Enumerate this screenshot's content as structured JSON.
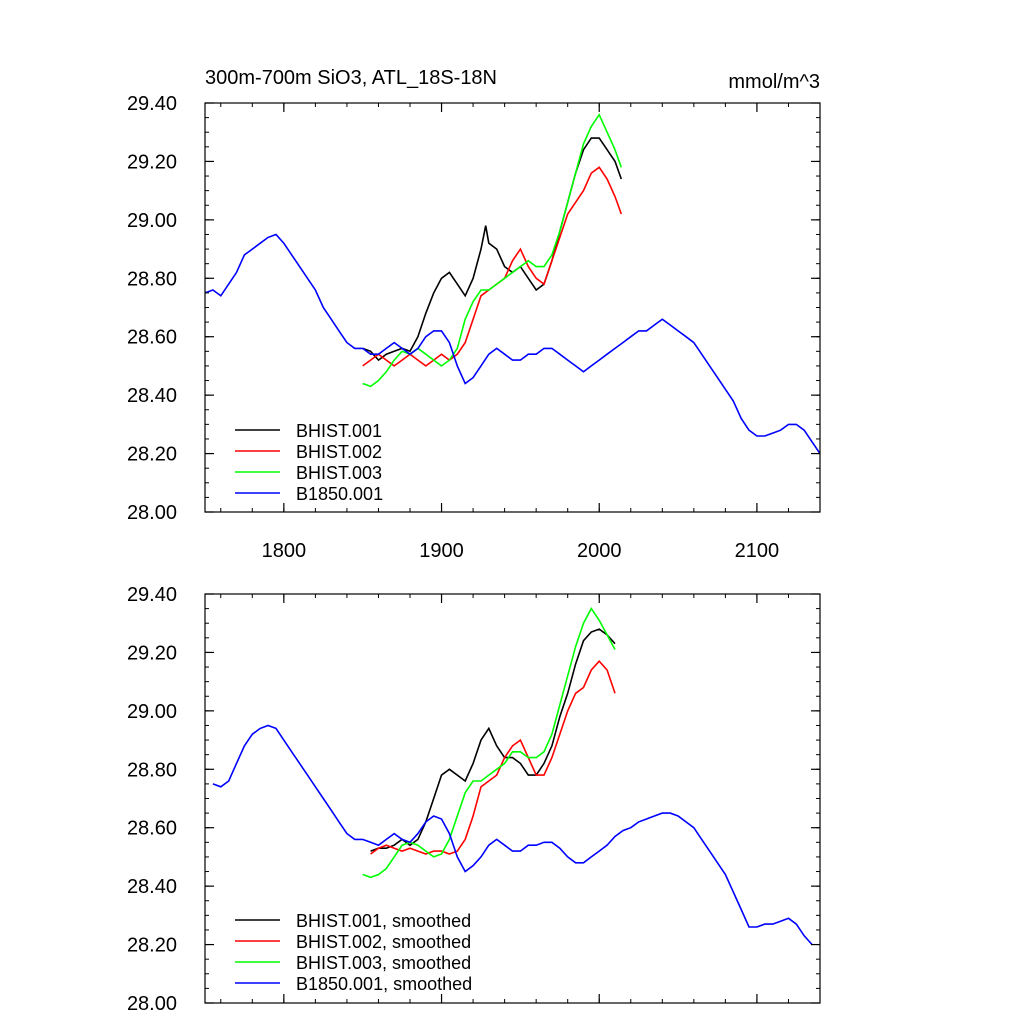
{
  "header": {
    "title": "300m-700m SiO3, ATL_18S-18N",
    "units": "mmol/m^3"
  },
  "colors": {
    "BHIST.001": "#000000",
    "BHIST.002": "#ff0000",
    "BHIST.003": "#00ff00",
    "B1850.001": "#0000ff"
  },
  "chart_data": [
    {
      "type": "line",
      "title": "300m-700m SiO3, ATL_18S-18N",
      "xlabel": "",
      "ylabel": "",
      "xlim": [
        1750,
        2140
      ],
      "ylim": [
        28.0,
        29.4
      ],
      "xticks": [
        1800,
        1900,
        2000,
        2100
      ],
      "xtick_labels": [
        "1800",
        "1900",
        "2000",
        "2100"
      ],
      "yticks": [
        28.0,
        28.2,
        28.4,
        28.6,
        28.8,
        29.0,
        29.2,
        29.4
      ],
      "ytick_labels": [
        "28.00",
        "28.20",
        "28.40",
        "28.60",
        "28.80",
        "29.00",
        "29.20",
        "29.40"
      ],
      "grid": false,
      "legend": "bottom-left",
      "series": [
        {
          "name": "BHIST.001",
          "color": "#000000",
          "x": [
            1850,
            1855,
            1860,
            1865,
            1870,
            1875,
            1880,
            1885,
            1890,
            1895,
            1900,
            1905,
            1910,
            1915,
            1920,
            1925,
            1928,
            1930,
            1935,
            1940,
            1945,
            1950,
            1955,
            1960,
            1965,
            1970,
            1975,
            1980,
            1985,
            1990,
            1995,
            2000,
            2005,
            2010,
            2014
          ],
          "y": [
            28.56,
            28.55,
            28.52,
            28.54,
            28.55,
            28.56,
            28.55,
            28.6,
            28.68,
            28.75,
            28.8,
            28.82,
            28.78,
            28.74,
            28.8,
            28.9,
            28.98,
            28.92,
            28.9,
            28.84,
            28.82,
            28.84,
            28.8,
            28.76,
            28.78,
            28.86,
            28.96,
            29.06,
            29.16,
            29.24,
            29.28,
            29.28,
            29.24,
            29.2,
            29.14
          ]
        },
        {
          "name": "BHIST.002",
          "color": "#ff0000",
          "x": [
            1850,
            1855,
            1860,
            1865,
            1870,
            1875,
            1880,
            1885,
            1890,
            1895,
            1900,
            1905,
            1910,
            1915,
            1920,
            1925,
            1930,
            1935,
            1940,
            1945,
            1950,
            1955,
            1960,
            1965,
            1970,
            1975,
            1980,
            1985,
            1990,
            1995,
            2000,
            2005,
            2010,
            2014
          ],
          "y": [
            28.5,
            28.52,
            28.54,
            28.52,
            28.5,
            28.52,
            28.54,
            28.52,
            28.5,
            28.52,
            28.54,
            28.52,
            28.54,
            28.58,
            28.66,
            28.74,
            28.76,
            28.78,
            28.8,
            28.86,
            28.9,
            28.84,
            28.8,
            28.78,
            28.86,
            28.94,
            29.02,
            29.06,
            29.1,
            29.16,
            29.18,
            29.14,
            29.08,
            29.02
          ]
        },
        {
          "name": "BHIST.003",
          "color": "#00ff00",
          "x": [
            1850,
            1855,
            1860,
            1865,
            1870,
            1875,
            1880,
            1885,
            1890,
            1895,
            1900,
            1905,
            1910,
            1915,
            1920,
            1925,
            1930,
            1935,
            1940,
            1945,
            1950,
            1955,
            1960,
            1965,
            1970,
            1975,
            1980,
            1985,
            1990,
            1995,
            2000,
            2005,
            2010,
            2014
          ],
          "y": [
            28.44,
            28.43,
            28.45,
            28.48,
            28.52,
            28.55,
            28.54,
            28.56,
            28.54,
            28.52,
            28.5,
            28.52,
            28.56,
            28.66,
            28.72,
            28.76,
            28.76,
            28.78,
            28.8,
            28.82,
            28.84,
            28.86,
            28.84,
            28.84,
            28.88,
            28.96,
            29.06,
            29.16,
            29.26,
            29.32,
            29.36,
            29.3,
            29.24,
            29.18
          ]
        },
        {
          "name": "B1850.001",
          "color": "#0000ff",
          "x": [
            1750,
            1755,
            1760,
            1765,
            1770,
            1775,
            1780,
            1785,
            1790,
            1795,
            1800,
            1805,
            1810,
            1815,
            1820,
            1825,
            1830,
            1835,
            1840,
            1845,
            1850,
            1855,
            1860,
            1865,
            1870,
            1875,
            1880,
            1885,
            1890,
            1895,
            1900,
            1905,
            1910,
            1915,
            1920,
            1925,
            1930,
            1935,
            1940,
            1945,
            1950,
            1955,
            1960,
            1965,
            1970,
            1975,
            1980,
            1985,
            1990,
            1995,
            2000,
            2005,
            2010,
            2015,
            2020,
            2025,
            2030,
            2035,
            2040,
            2045,
            2050,
            2055,
            2060,
            2065,
            2070,
            2075,
            2080,
            2085,
            2090,
            2095,
            2100,
            2105,
            2110,
            2115,
            2120,
            2125,
            2130,
            2135,
            2140
          ],
          "y": [
            28.75,
            28.76,
            28.74,
            28.78,
            28.82,
            28.88,
            28.9,
            28.92,
            28.94,
            28.95,
            28.92,
            28.88,
            28.84,
            28.8,
            28.76,
            28.7,
            28.66,
            28.62,
            28.58,
            28.56,
            28.56,
            28.54,
            28.54,
            28.56,
            28.58,
            28.56,
            28.54,
            28.56,
            28.6,
            28.62,
            28.62,
            28.58,
            28.5,
            28.44,
            28.46,
            28.5,
            28.54,
            28.56,
            28.54,
            28.52,
            28.52,
            28.54,
            28.54,
            28.56,
            28.56,
            28.54,
            28.52,
            28.5,
            28.48,
            28.5,
            28.52,
            28.54,
            28.56,
            28.58,
            28.6,
            28.62,
            28.62,
            28.64,
            28.66,
            28.64,
            28.62,
            28.6,
            28.58,
            28.54,
            28.5,
            28.46,
            28.42,
            28.38,
            28.32,
            28.28,
            28.26,
            28.26,
            28.27,
            28.28,
            28.3,
            28.3,
            28.28,
            28.24,
            28.2
          ]
        }
      ]
    },
    {
      "type": "line",
      "title": "",
      "xlabel": "",
      "ylabel": "",
      "xlim": [
        1750,
        2140
      ],
      "ylim": [
        28.0,
        29.4
      ],
      "xticks": [
        1800,
        1900,
        2000,
        2100
      ],
      "yticks": [
        28.0,
        28.2,
        28.4,
        28.6,
        28.8,
        29.0,
        29.2,
        29.4
      ],
      "ytick_labels": [
        "28.00",
        "28.20",
        "28.40",
        "28.60",
        "28.80",
        "29.00",
        "29.20",
        "29.40"
      ],
      "grid": false,
      "legend": "bottom-left",
      "series": [
        {
          "name": "BHIST.001, smoothed",
          "color": "#000000",
          "x": [
            1855,
            1860,
            1865,
            1870,
            1875,
            1880,
            1885,
            1890,
            1895,
            1900,
            1905,
            1910,
            1915,
            1920,
            1925,
            1930,
            1935,
            1940,
            1945,
            1950,
            1955,
            1960,
            1965,
            1970,
            1975,
            1980,
            1985,
            1990,
            1995,
            2000,
            2005,
            2010
          ],
          "y": [
            28.52,
            28.53,
            28.53,
            28.54,
            28.56,
            28.54,
            28.56,
            28.62,
            28.7,
            28.78,
            28.8,
            28.78,
            28.76,
            28.82,
            28.9,
            28.94,
            28.88,
            28.84,
            28.84,
            28.82,
            28.78,
            28.78,
            28.82,
            28.88,
            28.98,
            29.06,
            29.16,
            29.24,
            29.27,
            29.28,
            29.26,
            29.23
          ]
        },
        {
          "name": "BHIST.002, smoothed",
          "color": "#ff0000",
          "x": [
            1855,
            1860,
            1865,
            1870,
            1875,
            1880,
            1885,
            1890,
            1895,
            1900,
            1905,
            1910,
            1915,
            1920,
            1925,
            1930,
            1935,
            1940,
            1945,
            1950,
            1955,
            1960,
            1965,
            1970,
            1975,
            1980,
            1985,
            1990,
            1995,
            2000,
            2005,
            2010
          ],
          "y": [
            28.51,
            28.53,
            28.54,
            28.53,
            28.52,
            28.53,
            28.52,
            28.51,
            28.52,
            28.52,
            28.51,
            28.52,
            28.56,
            28.64,
            28.74,
            28.76,
            28.78,
            28.84,
            28.88,
            28.9,
            28.84,
            28.78,
            28.78,
            28.84,
            28.92,
            29.0,
            29.06,
            29.08,
            29.14,
            29.17,
            29.14,
            29.06
          ]
        },
        {
          "name": "BHIST.003, smoothed",
          "color": "#00ff00",
          "x": [
            1850,
            1855,
            1860,
            1865,
            1870,
            1875,
            1880,
            1885,
            1890,
            1895,
            1900,
            1905,
            1910,
            1915,
            1920,
            1925,
            1930,
            1935,
            1940,
            1945,
            1950,
            1955,
            1960,
            1965,
            1970,
            1975,
            1980,
            1985,
            1990,
            1995,
            2000,
            2005,
            2010
          ],
          "y": [
            28.44,
            28.43,
            28.44,
            28.46,
            28.5,
            28.54,
            28.55,
            28.54,
            28.52,
            28.5,
            28.51,
            28.56,
            28.64,
            28.72,
            28.76,
            28.76,
            28.78,
            28.8,
            28.82,
            28.86,
            28.86,
            28.84,
            28.84,
            28.86,
            28.92,
            29.02,
            29.12,
            29.22,
            29.3,
            29.35,
            29.31,
            29.26,
            29.21
          ]
        },
        {
          "name": "B1850.001, smoothed",
          "color": "#0000ff",
          "x": [
            1755,
            1760,
            1765,
            1770,
            1775,
            1780,
            1785,
            1790,
            1795,
            1800,
            1805,
            1810,
            1815,
            1820,
            1825,
            1830,
            1835,
            1840,
            1845,
            1850,
            1855,
            1860,
            1865,
            1870,
            1875,
            1880,
            1885,
            1890,
            1895,
            1900,
            1905,
            1910,
            1915,
            1920,
            1925,
            1930,
            1935,
            1940,
            1945,
            1950,
            1955,
            1960,
            1965,
            1970,
            1975,
            1980,
            1985,
            1990,
            1995,
            2000,
            2005,
            2010,
            2015,
            2020,
            2025,
            2030,
            2035,
            2040,
            2045,
            2050,
            2055,
            2060,
            2065,
            2070,
            2075,
            2080,
            2085,
            2090,
            2095,
            2100,
            2105,
            2110,
            2115,
            2120,
            2125,
            2130,
            2135
          ],
          "y": [
            28.75,
            28.74,
            28.76,
            28.82,
            28.88,
            28.92,
            28.94,
            28.95,
            28.94,
            28.9,
            28.86,
            28.82,
            28.78,
            28.74,
            28.7,
            28.66,
            28.62,
            28.58,
            28.56,
            28.56,
            28.55,
            28.54,
            28.56,
            28.58,
            28.56,
            28.55,
            28.58,
            28.62,
            28.64,
            28.63,
            28.58,
            28.5,
            28.45,
            28.47,
            28.5,
            28.54,
            28.56,
            28.54,
            28.52,
            28.52,
            28.54,
            28.54,
            28.55,
            28.55,
            28.53,
            28.5,
            28.48,
            28.48,
            28.5,
            28.52,
            28.54,
            28.57,
            28.59,
            28.6,
            28.62,
            28.63,
            28.64,
            28.65,
            28.65,
            28.64,
            28.62,
            28.6,
            28.56,
            28.52,
            28.48,
            28.44,
            28.38,
            28.32,
            28.26,
            28.26,
            28.27,
            28.27,
            28.28,
            28.29,
            28.27,
            28.23,
            28.2
          ]
        }
      ]
    }
  ]
}
